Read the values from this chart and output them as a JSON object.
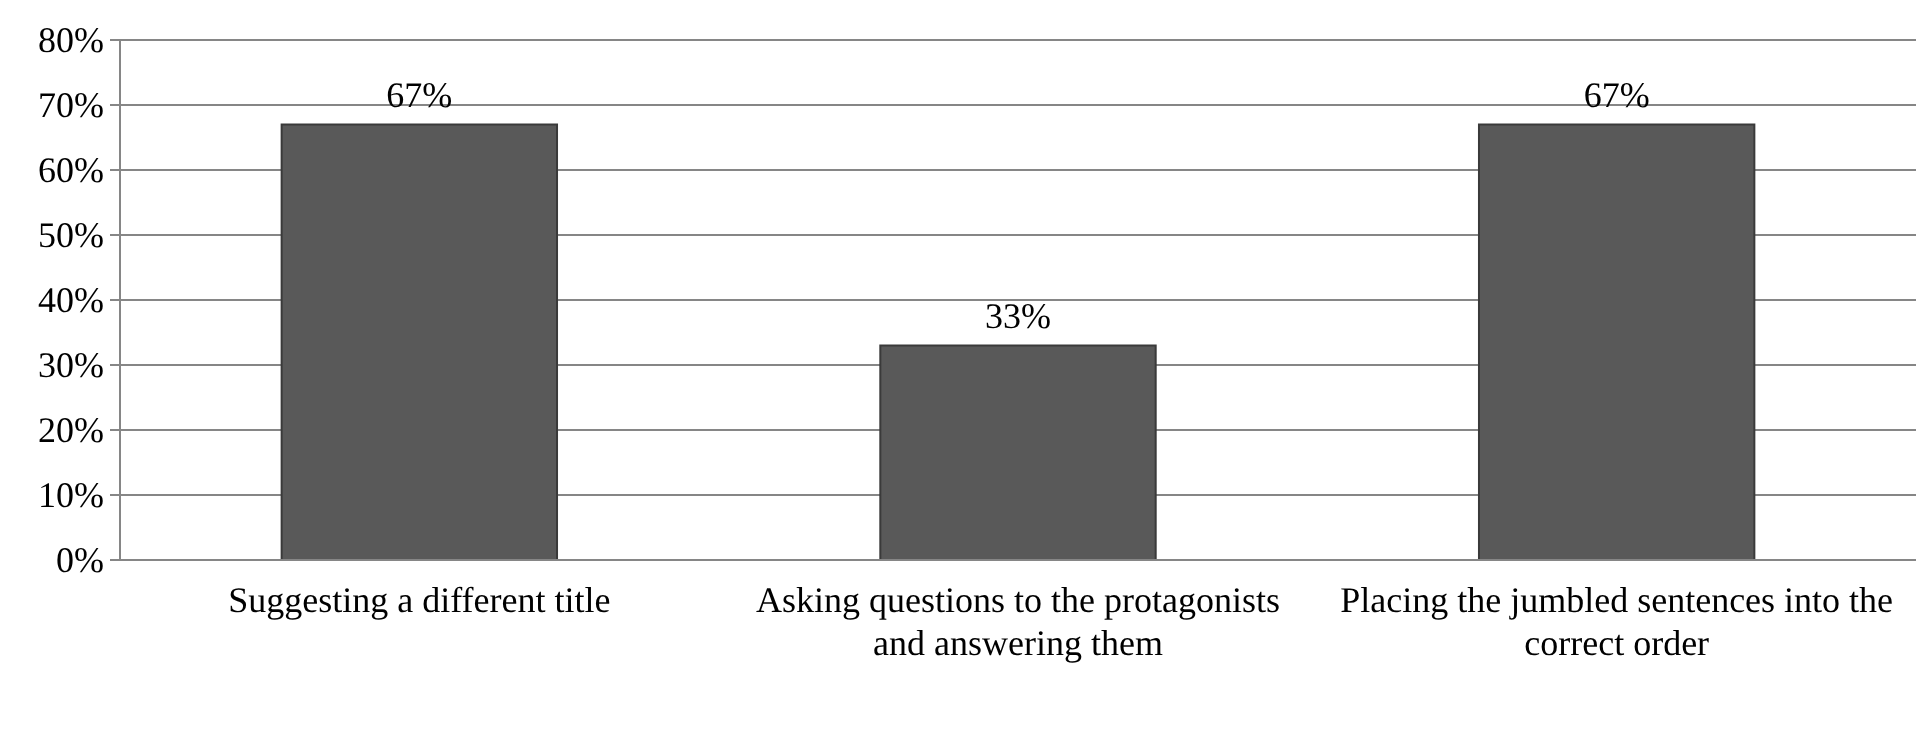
{
  "chart_data": {
    "type": "bar",
    "categories": [
      "Suggesting a different title",
      "Asking questions to the protagonists and answering them",
      "Placing the jumbled sentences into the correct order"
    ],
    "values": [
      67,
      33,
      67
    ],
    "color": "#595959",
    "value_labels": [
      "67%",
      "33%",
      "67%"
    ],
    "ylim": [
      0,
      80
    ],
    "yticks": [
      {
        "value": 0,
        "label": "0%"
      },
      {
        "value": 10,
        "label": "10%"
      },
      {
        "value": 20,
        "label": "20%"
      },
      {
        "value": 30,
        "label": "30%"
      },
      {
        "value": 40,
        "label": "40%"
      },
      {
        "value": 50,
        "label": "50%"
      },
      {
        "value": 60,
        "label": "60%"
      },
      {
        "value": 70,
        "label": "70%"
      },
      {
        "value": 80,
        "label": "80%"
      }
    ],
    "grid": "y"
  }
}
